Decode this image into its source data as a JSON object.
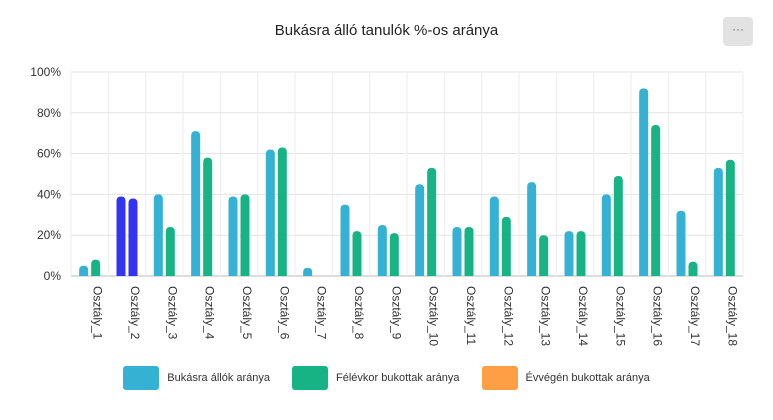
{
  "chart_data": {
    "type": "bar",
    "title": "Bukásra álló tanulók %-os aránya",
    "categories": [
      "Osztály_1",
      "Osztály_2",
      "Osztály_3",
      "Osztály_4",
      "Osztály_5",
      "Osztály_6",
      "Osztály_7",
      "Osztály_8",
      "Osztály_9",
      "Osztály_10",
      "Osztály_11",
      "Osztály_12",
      "Osztály_13",
      "Osztály_14",
      "Osztály_15",
      "Osztály_16",
      "Osztály_17",
      "Osztály_18"
    ],
    "series": [
      {
        "name": "Bukásra állók aránya",
        "color": "#34b1d3",
        "values": [
          5,
          39,
          40,
          71,
          39,
          62,
          4,
          35,
          25,
          45,
          24,
          39,
          46,
          22,
          40,
          92,
          32,
          53
        ]
      },
      {
        "name": "Félévkor bukottak aránya",
        "color": "#17b385",
        "values": [
          8,
          38,
          24,
          58,
          40,
          63,
          0,
          22,
          21,
          53,
          24,
          29,
          20,
          22,
          49,
          74,
          7,
          57
        ]
      },
      {
        "name": "Évvégén bukottak aránya",
        "color": "#fe9f45",
        "values": [
          0,
          0,
          0,
          0,
          0,
          0,
          0,
          0,
          0,
          0,
          0,
          0,
          0,
          0,
          0,
          0,
          0,
          0
        ]
      }
    ],
    "highlight": {
      "category_index": 1,
      "color": "#3333f0"
    },
    "ylim": [
      0,
      100
    ],
    "yticks": [
      "0%",
      "20%",
      "40%",
      "60%",
      "80%",
      "100%"
    ],
    "grid": true,
    "legend_position": "bottom"
  },
  "menu": {
    "label": "···"
  }
}
